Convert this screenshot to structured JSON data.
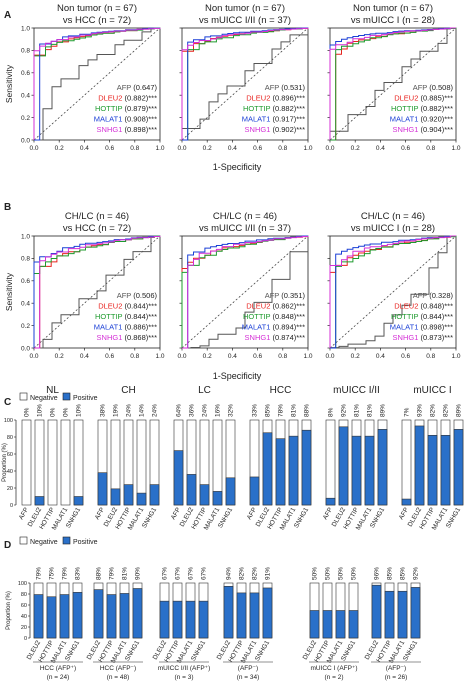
{
  "chart_data": {
    "colors": {
      "AFP": "#555555",
      "DLEU2": "#e8231f",
      "HOTTIP": "#1e9b2e",
      "MALAT1": "#1a3fd6",
      "SNHG1": "#d42fd6",
      "positive_bar": "#2a70c9"
    },
    "panel_letters": [
      "A",
      "B",
      "C",
      "D"
    ],
    "markers": [
      "AFP",
      "DLEU2",
      "HOTTIP",
      "MALAT1",
      "SNHG1"
    ],
    "roc_xlabel": "1-Specificity",
    "roc_ylabel": "Sensitivity",
    "roc_ticks": [
      "0.0",
      "0.2",
      "0.4",
      "0.6",
      "0.8",
      "1.0"
    ],
    "roc_panels": [
      {
        "title1": "Non tumor (n = 67)",
        "title2": "vs HCC (n = 72)",
        "auc": [
          "(0.647)",
          "(0.882)***",
          "(0.879)***",
          "(0.908)***",
          "(0.898)***"
        ]
      },
      {
        "title1": "Non tumor (n = 67)",
        "title2": "vs mUICC I/II (n = 37)",
        "auc": [
          "(0.531)",
          "(0.896)***",
          "(0.882)***",
          "(0.917)***",
          "(0.902)***"
        ]
      },
      {
        "title1": "Non tumor (n = 67)",
        "title2": "vs mUICC I (n = 28)",
        "auc": [
          "(0.508)",
          "(0.885)***",
          "(0.882)***",
          "(0.920)***",
          "(0.904)***"
        ]
      },
      {
        "title1": "CH/LC (n = 46)",
        "title2": "vs HCC (n = 72)",
        "auc": [
          "(0.506)",
          "(0.844)***",
          "(0.844)***",
          "(0.886)***",
          "(0.868)***"
        ]
      },
      {
        "title1": "CH/LC (n = 46)",
        "title2": "vs mUICC I/II (n = 37)",
        "auc": [
          "(0.351)",
          "(0.862)***",
          "(0.848)***",
          "(0.894)***",
          "(0.874)***"
        ]
      },
      {
        "title1": "CH/LC (n = 46)",
        "title2": "vs mUICC I (n = 28)",
        "auc": [
          "(0.328)",
          "(0.848)***",
          "(0.844)***",
          "(0.898)***",
          "(0.873)***"
        ]
      }
    ],
    "bar_legend": [
      "Negative",
      "Positive"
    ],
    "bar_ylabel": "Proportion (%)",
    "bar_ticks": [
      "0",
      "20",
      "40",
      "60",
      "80",
      "100"
    ],
    "panelC": [
      {
        "name": "NL",
        "markers": [
          "AFP",
          "DLEU2",
          "HOTTIP",
          "MALAT1",
          "SNHG1"
        ],
        "labels": [
          "0%",
          "10%",
          "0%",
          "0%",
          "10%"
        ],
        "values": [
          0,
          10,
          0,
          0,
          10
        ]
      },
      {
        "name": "CH",
        "markers": [
          "AFP",
          "DLEU2",
          "HOTTIP",
          "MALAT1",
          "SNHG1"
        ],
        "labels": [
          "38%",
          "19%",
          "24%",
          "14%",
          "24%"
        ],
        "values": [
          38,
          19,
          24,
          14,
          24
        ]
      },
      {
        "name": "LC",
        "markers": [
          "AFP",
          "DLEU2",
          "HOTTIP",
          "MALAT1",
          "SNHG1"
        ],
        "labels": [
          "64%",
          "36%",
          "24%",
          "16%",
          "32%"
        ],
        "values": [
          64,
          36,
          24,
          16,
          32
        ]
      },
      {
        "name": "HCC",
        "markers": [
          "AFP",
          "DLEU2",
          "HOTTIP",
          "MALAT1",
          "SNHG1"
        ],
        "labels": [
          "33%",
          "85%",
          "78%",
          "81%",
          "88%"
        ],
        "values": [
          33,
          85,
          78,
          81,
          88
        ]
      },
      {
        "name": "mUICC I/II",
        "markers": [
          "AFP",
          "DLEU2",
          "HOTTIP",
          "MALAT1",
          "SNHG1"
        ],
        "labels": [
          "8%",
          "92%",
          "81%",
          "81%",
          "89%"
        ],
        "values": [
          8,
          92,
          81,
          81,
          89
        ]
      },
      {
        "name": "mUICC I",
        "markers": [
          "AFP",
          "DLEU2",
          "HOTTIP",
          "MALAT1",
          "SNHG1"
        ],
        "labels": [
          "7%",
          "93%",
          "82%",
          "82%",
          "89%"
        ],
        "values": [
          7,
          93,
          82,
          82,
          89
        ]
      }
    ],
    "panelD_groups": [
      {
        "label": "HCC (AFP⁺)",
        "n": "(n = 24)",
        "labels": [
          "79%",
          "75%",
          "79%",
          "83%"
        ],
        "values": [
          79,
          75,
          79,
          83
        ]
      },
      {
        "label": "HCC (AFP⁻)",
        "n": "(n = 48)",
        "labels": [
          "88%",
          "79%",
          "81%",
          "90%"
        ],
        "values": [
          88,
          79,
          81,
          90
        ]
      },
      {
        "label": "mUICC I/II (AFP⁺)",
        "n": "(n = 3)",
        "labels": [
          "67%",
          "67%",
          "67%",
          "67%"
        ],
        "values": [
          67,
          67,
          67,
          67
        ]
      },
      {
        "label": "(AFP⁻)",
        "n": "(n = 34)",
        "labels": [
          "94%",
          "82%",
          "82%",
          "91%"
        ],
        "values": [
          94,
          82,
          82,
          91
        ]
      },
      {
        "label": "mUICC I (AFP⁺)",
        "n": "(n = 2)",
        "labels": [
          "50%",
          "50%",
          "50%",
          "50%"
        ],
        "values": [
          50,
          50,
          50,
          50
        ]
      },
      {
        "label": "(AFP⁻)",
        "n": "(n = 26)",
        "labels": [
          "96%",
          "85%",
          "85%",
          "92%"
        ],
        "values": [
          96,
          85,
          85,
          92
        ]
      }
    ],
    "panelD_markers": [
      "DLEU2",
      "HOTTIP",
      "MALAT1",
      "SNHG1"
    ]
  }
}
